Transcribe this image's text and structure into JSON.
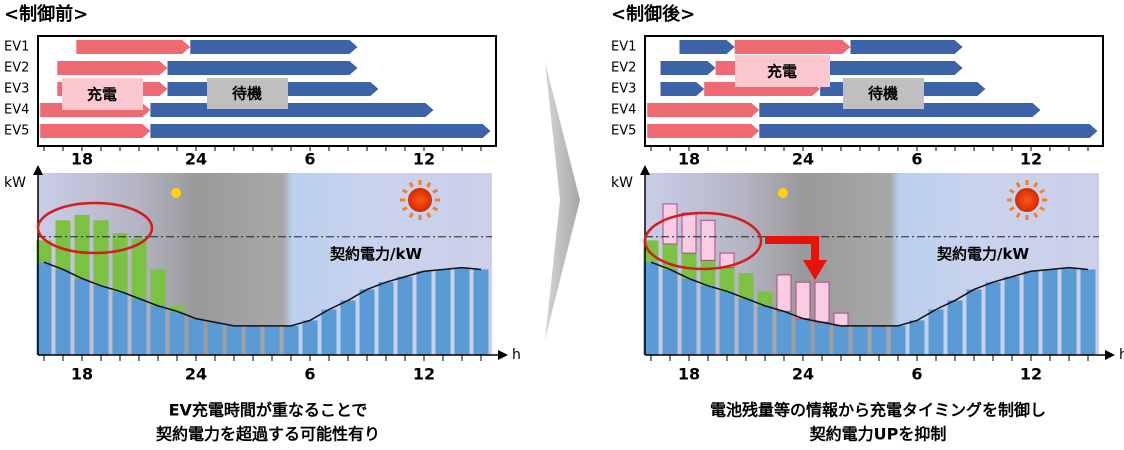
{
  "panels": [
    {
      "title": "<制御前>",
      "gantt": {
        "rows": [
          {
            "label": "EV1",
            "charging": [
              [
                17.7,
                23.7
              ]
            ],
            "waiting": [
              [
                23.7,
                32.5
              ]
            ]
          },
          {
            "label": "EV2",
            "charging": [
              [
                16.7,
                22.5
              ]
            ],
            "waiting": [
              [
                22.5,
                32.5
              ]
            ]
          },
          {
            "label": "EV3",
            "charging": [
              [
                16.7,
                22.5
              ]
            ],
            "waiting": [
              [
                22.5,
                33.6
              ]
            ]
          },
          {
            "label": "EV4",
            "charging": [
              [
                15.8,
                21.6
              ]
            ],
            "waiting": [
              [
                21.6,
                36.5
              ]
            ]
          },
          {
            "label": "EV5",
            "charging": [
              [
                15.8,
                21.6
              ]
            ],
            "waiting": [
              [
                21.6,
                39.5
              ]
            ]
          }
        ],
        "charge_label": "充電",
        "wait_label": "待機"
      },
      "chart": {
        "y_label": "kW",
        "x_label": "h",
        "contract_label": "契約電力/kW",
        "contract": 65,
        "ylim": [
          0,
          100
        ],
        "xticks": [
          18,
          24,
          {
            "value": 30,
            "label": "6"
          },
          {
            "value": 36,
            "label": "12"
          }
        ],
        "hours": [
          16,
          17,
          18,
          19,
          20,
          21,
          22,
          23,
          24,
          25,
          26,
          27,
          28,
          29,
          30,
          31,
          32,
          33,
          34,
          35,
          36,
          37,
          38,
          39
        ],
        "base": [
          51,
          47,
          42,
          38,
          35,
          31,
          27,
          24,
          20,
          18,
          16,
          16,
          16,
          16,
          19,
          25,
          30,
          36,
          40,
          43,
          46,
          47,
          48,
          47
        ],
        "ev": [
          12,
          27,
          35,
          36,
          32,
          33,
          20,
          3,
          0,
          0,
          0,
          0,
          0,
          0,
          0,
          0,
          0,
          0,
          0,
          0,
          0,
          0,
          0,
          0
        ]
      },
      "caption": [
        "EV充電時間が重なることで",
        "契約電力を超過する可能性有り"
      ]
    },
    {
      "title": "<制御後>",
      "gantt": {
        "rows": [
          {
            "label": "EV1",
            "charging": [
              [
                20.4,
                26.5
              ]
            ],
            "waiting": [
              [
                17.5,
                20.4
              ],
              [
                26.5,
                32.4
              ]
            ]
          },
          {
            "label": "EV2",
            "charging": [
              [
                19.4,
                25.4
              ]
            ],
            "waiting": [
              [
                16.5,
                19.4
              ],
              [
                25.4,
                32.4
              ]
            ]
          },
          {
            "label": "EV3",
            "charging": [
              [
                18.8,
                24.9
              ]
            ],
            "waiting": [
              [
                16.5,
                18.8
              ],
              [
                24.9,
                33.6
              ]
            ]
          },
          {
            "label": "EV4",
            "charging": [
              [
                15.8,
                21.7
              ]
            ],
            "waiting": [
              [
                21.7,
                36.5
              ]
            ]
          },
          {
            "label": "EV5",
            "charging": [
              [
                15.8,
                21.7
              ]
            ],
            "waiting": [
              [
                21.7,
                39.5
              ]
            ]
          }
        ],
        "charge_label": "充電",
        "wait_label": "待機"
      },
      "chart": {
        "y_label": "kW",
        "x_label": "h",
        "contract_label": "契約電力/kW",
        "contract": 65,
        "ylim": [
          0,
          100
        ],
        "xticks": [
          18,
          24,
          {
            "value": 30,
            "label": "6"
          },
          {
            "value": 36,
            "label": "12"
          }
        ],
        "hours": [
          16,
          17,
          18,
          19,
          20,
          21,
          22,
          23,
          24,
          25,
          26,
          27,
          28,
          29,
          30,
          31,
          32,
          33,
          34,
          35,
          36,
          37,
          38,
          39
        ],
        "base": [
          51,
          47,
          42,
          38,
          35,
          31,
          27,
          24,
          20,
          18,
          16,
          16,
          16,
          16,
          19,
          25,
          30,
          36,
          40,
          43,
          46,
          47,
          48,
          47
        ],
        "ev": [
          12,
          14,
          14,
          14,
          13,
          14,
          8,
          0,
          0,
          0,
          0,
          0,
          0,
          0,
          0,
          0,
          0,
          0,
          0,
          0,
          0,
          0,
          0,
          0
        ],
        "shifted": [
          0,
          22,
          22,
          22,
          8,
          0,
          0,
          20,
          20,
          22,
          7,
          0,
          0,
          0,
          0,
          0,
          0,
          0,
          0,
          0,
          0,
          0,
          0,
          0
        ]
      },
      "caption": [
        "電池残量等の情報から充電タイミングを制御し",
        "契約電力UPを抑制"
      ]
    }
  ]
}
